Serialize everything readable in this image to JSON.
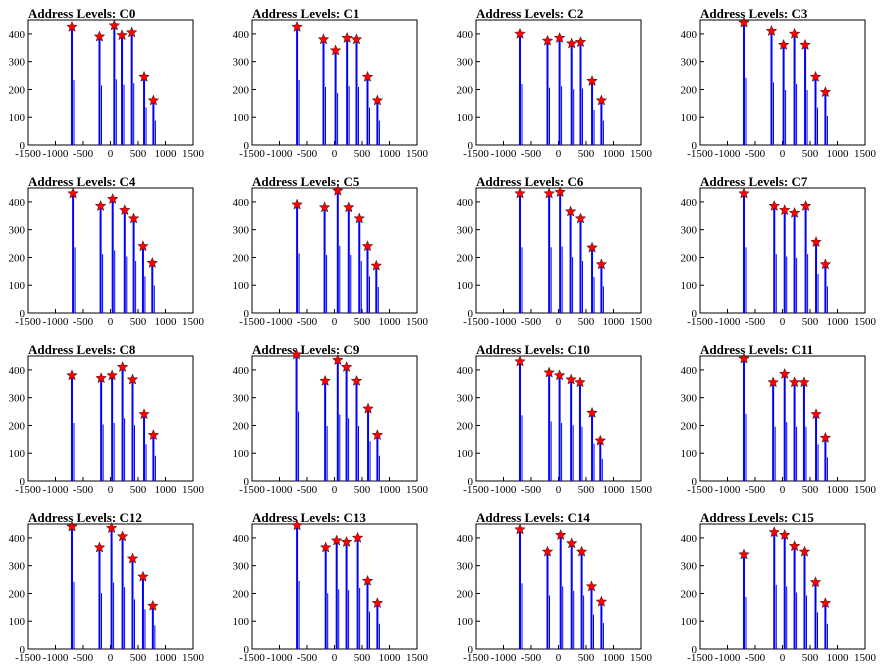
{
  "chart_data": {
    "type": "bar",
    "title_prefix": "Address Levels: ",
    "xlim": [
      -1500,
      1500
    ],
    "ylim": [
      0,
      450
    ],
    "x_ticks": [
      -1500,
      -1000,
      -500,
      0,
      500,
      1000,
      1500
    ],
    "y_ticks": [
      0,
      100,
      200,
      300,
      400
    ],
    "colors": {
      "histogram": "#0000ff",
      "marker": "#ff0000",
      "marker_edge": "#000000",
      "axes": "#000000"
    },
    "panels": [
      {
        "title": "Address Levels: C0",
        "peaks": [
          {
            "x": -700,
            "y": 425
          },
          {
            "x": -200,
            "y": 390
          },
          {
            "x": 70,
            "y": 430
          },
          {
            "x": 210,
            "y": 395
          },
          {
            "x": 385,
            "y": 405
          },
          {
            "x": 610,
            "y": 245
          },
          {
            "x": 780,
            "y": 160
          }
        ]
      },
      {
        "title": "Address Levels: C1",
        "peaks": [
          {
            "x": -680,
            "y": 425
          },
          {
            "x": -200,
            "y": 380
          },
          {
            "x": 20,
            "y": 340
          },
          {
            "x": 230,
            "y": 385
          },
          {
            "x": 400,
            "y": 380
          },
          {
            "x": 600,
            "y": 245
          },
          {
            "x": 780,
            "y": 160
          }
        ]
      },
      {
        "title": "Address Levels: C2",
        "peaks": [
          {
            "x": -700,
            "y": 400
          },
          {
            "x": -200,
            "y": 375
          },
          {
            "x": 20,
            "y": 385
          },
          {
            "x": 240,
            "y": 365
          },
          {
            "x": 400,
            "y": 370
          },
          {
            "x": 610,
            "y": 230
          },
          {
            "x": 780,
            "y": 160
          }
        ]
      },
      {
        "title": "Address Levels: C3",
        "peaks": [
          {
            "x": -700,
            "y": 440
          },
          {
            "x": -200,
            "y": 410
          },
          {
            "x": 20,
            "y": 360
          },
          {
            "x": 220,
            "y": 400
          },
          {
            "x": 410,
            "y": 360
          },
          {
            "x": 600,
            "y": 245
          },
          {
            "x": 780,
            "y": 190
          }
        ]
      },
      {
        "title": "Address Levels: C4",
        "peaks": [
          {
            "x": -680,
            "y": 430
          },
          {
            "x": -180,
            "y": 385
          },
          {
            "x": 40,
            "y": 410
          },
          {
            "x": 260,
            "y": 370
          },
          {
            "x": 420,
            "y": 340
          },
          {
            "x": 590,
            "y": 240
          },
          {
            "x": 760,
            "y": 180
          }
        ]
      },
      {
        "title": "Address Levels: C5",
        "peaks": [
          {
            "x": -680,
            "y": 390
          },
          {
            "x": -180,
            "y": 380
          },
          {
            "x": 60,
            "y": 440
          },
          {
            "x": 260,
            "y": 380
          },
          {
            "x": 450,
            "y": 340
          },
          {
            "x": 600,
            "y": 240
          },
          {
            "x": 760,
            "y": 170
          }
        ]
      },
      {
        "title": "Address Levels: C6",
        "peaks": [
          {
            "x": -700,
            "y": 430
          },
          {
            "x": -170,
            "y": 430
          },
          {
            "x": 30,
            "y": 435
          },
          {
            "x": 220,
            "y": 365
          },
          {
            "x": 400,
            "y": 340
          },
          {
            "x": 610,
            "y": 235
          },
          {
            "x": 780,
            "y": 175
          }
        ]
      },
      {
        "title": "Address Levels: C7",
        "peaks": [
          {
            "x": -700,
            "y": 430
          },
          {
            "x": -150,
            "y": 385
          },
          {
            "x": 40,
            "y": 370
          },
          {
            "x": 220,
            "y": 360
          },
          {
            "x": 420,
            "y": 385
          },
          {
            "x": 610,
            "y": 255
          },
          {
            "x": 780,
            "y": 175
          }
        ]
      },
      {
        "title": "Address Levels: C8",
        "peaks": [
          {
            "x": -700,
            "y": 380
          },
          {
            "x": -170,
            "y": 370
          },
          {
            "x": 30,
            "y": 380
          },
          {
            "x": 220,
            "y": 410
          },
          {
            "x": 400,
            "y": 365
          },
          {
            "x": 610,
            "y": 240
          },
          {
            "x": 780,
            "y": 165
          }
        ]
      },
      {
        "title": "Address Levels: C9",
        "peaks": [
          {
            "x": -690,
            "y": 455
          },
          {
            "x": -170,
            "y": 360
          },
          {
            "x": 60,
            "y": 435
          },
          {
            "x": 220,
            "y": 410
          },
          {
            "x": 400,
            "y": 360
          },
          {
            "x": 610,
            "y": 260
          },
          {
            "x": 780,
            "y": 165
          }
        ]
      },
      {
        "title": "Address Levels: C10",
        "peaks": [
          {
            "x": -700,
            "y": 430
          },
          {
            "x": -170,
            "y": 390
          },
          {
            "x": 20,
            "y": 380
          },
          {
            "x": 230,
            "y": 365
          },
          {
            "x": 390,
            "y": 355
          },
          {
            "x": 610,
            "y": 245
          },
          {
            "x": 760,
            "y": 145
          }
        ]
      },
      {
        "title": "Address Levels: C11",
        "peaks": [
          {
            "x": -700,
            "y": 440
          },
          {
            "x": -170,
            "y": 355
          },
          {
            "x": 40,
            "y": 385
          },
          {
            "x": 220,
            "y": 355
          },
          {
            "x": 390,
            "y": 355
          },
          {
            "x": 610,
            "y": 240
          },
          {
            "x": 780,
            "y": 155
          }
        ]
      },
      {
        "title": "Address Levels: C12",
        "peaks": [
          {
            "x": -700,
            "y": 440
          },
          {
            "x": -200,
            "y": 365
          },
          {
            "x": 20,
            "y": 435
          },
          {
            "x": 220,
            "y": 405
          },
          {
            "x": 400,
            "y": 325
          },
          {
            "x": 590,
            "y": 260
          },
          {
            "x": 770,
            "y": 155
          }
        ]
      },
      {
        "title": "Address Levels: C13",
        "peaks": [
          {
            "x": -680,
            "y": 445
          },
          {
            "x": -160,
            "y": 365
          },
          {
            "x": 40,
            "y": 390
          },
          {
            "x": 220,
            "y": 385
          },
          {
            "x": 420,
            "y": 400
          },
          {
            "x": 600,
            "y": 245
          },
          {
            "x": 780,
            "y": 165
          }
        ]
      },
      {
        "title": "Address Levels: C14",
        "peaks": [
          {
            "x": -700,
            "y": 430
          },
          {
            "x": -200,
            "y": 350
          },
          {
            "x": 40,
            "y": 410
          },
          {
            "x": 240,
            "y": 380
          },
          {
            "x": 420,
            "y": 350
          },
          {
            "x": 600,
            "y": 225
          },
          {
            "x": 780,
            "y": 170
          }
        ]
      },
      {
        "title": "Address Levels: C15",
        "peaks": [
          {
            "x": -700,
            "y": 340
          },
          {
            "x": -150,
            "y": 420
          },
          {
            "x": 40,
            "y": 410
          },
          {
            "x": 220,
            "y": 370
          },
          {
            "x": 400,
            "y": 350
          },
          {
            "x": 600,
            "y": 240
          },
          {
            "x": 780,
            "y": 165
          }
        ]
      }
    ]
  }
}
